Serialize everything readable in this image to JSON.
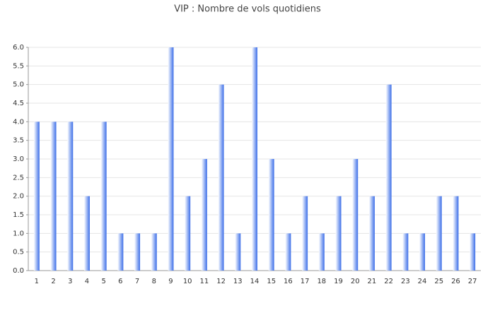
{
  "chart_data": {
    "type": "bar",
    "title": "VIP : Nombre de vols quotidiens",
    "categories": [
      "1",
      "2",
      "3",
      "4",
      "5",
      "6",
      "7",
      "8",
      "9",
      "10",
      "11",
      "12",
      "13",
      "14",
      "15",
      "16",
      "17",
      "18",
      "19",
      "20",
      "21",
      "22",
      "23",
      "24",
      "25",
      "26",
      "27"
    ],
    "values": [
      4,
      4,
      4,
      2,
      4,
      1,
      1,
      1,
      6,
      2,
      3,
      5,
      1,
      6,
      3,
      1,
      2,
      1,
      2,
      3,
      2,
      5,
      1,
      1,
      2,
      2,
      1
    ],
    "color": "#3d6fe8",
    "ylim": [
      0,
      6
    ],
    "yticks": [
      {
        "value": 0,
        "label": "0.0"
      },
      {
        "value": 0.5,
        "label": "0.5"
      },
      {
        "value": 1,
        "label": "1.0"
      },
      {
        "value": 1.5,
        "label": "1.5"
      },
      {
        "value": 2,
        "label": "2.0"
      },
      {
        "value": 2.5,
        "label": "2.5"
      },
      {
        "value": 3,
        "label": "3.0"
      },
      {
        "value": 3.5,
        "label": "3.5"
      },
      {
        "value": 4,
        "label": "4.0"
      },
      {
        "value": 4.5,
        "label": "4.5"
      },
      {
        "value": 5,
        "label": "5.0"
      },
      {
        "value": 5.5,
        "label": "5.5"
      },
      {
        "value": 6,
        "label": "6.0"
      }
    ],
    "grid": true
  }
}
